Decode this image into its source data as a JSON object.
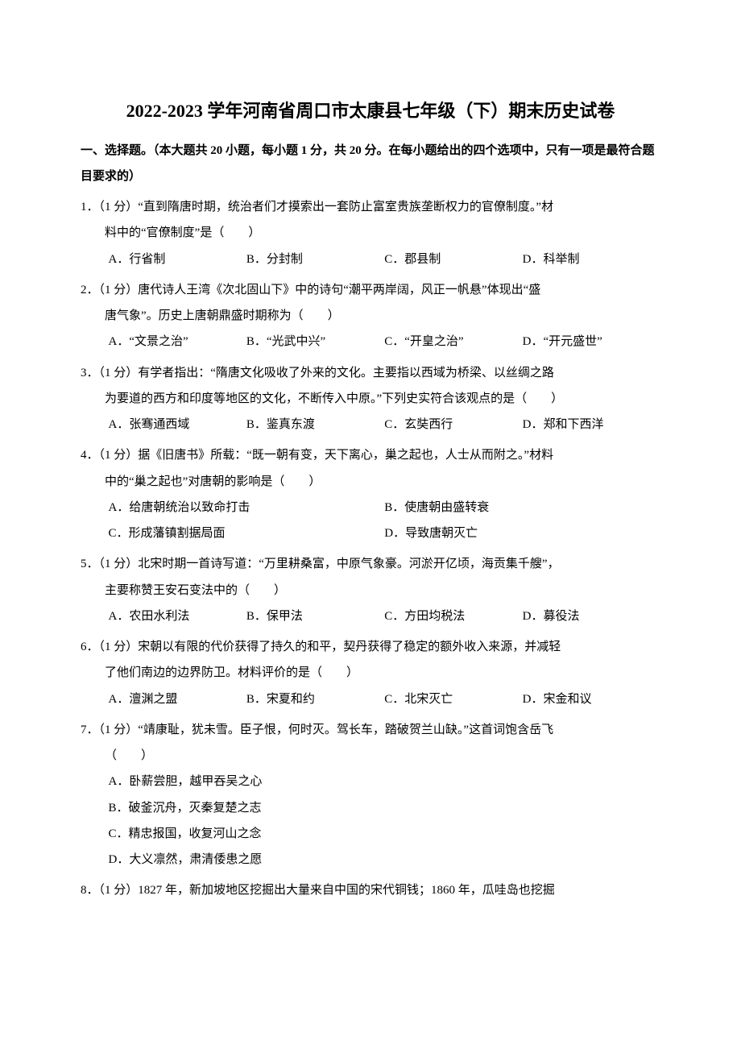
{
  "title": "2022-2023 学年河南省周口市太康县七年级（下）期末历史试卷",
  "section1": {
    "heading": "一、选择题。（本大题共 20 小题，每小题 1 分，共 20 分。在每小题给出的四个选项中，只有一项是最符合题目要求的）"
  },
  "q1": {
    "num": "1．（1 分）",
    "stem_a": "“直到隋唐时期，统治者们才摸索出一套防止富室贵族垄断权力的官僚制度。”材",
    "stem_b": "料中的“官僚制度”是（　　）",
    "A": "A．行省制",
    "B": "B．分封制",
    "C": "C．郡县制",
    "D": "D．科举制"
  },
  "q2": {
    "num": "2．（1 分）",
    "stem_a": "唐代诗人王湾《次北固山下》中的诗句“潮平两岸阔，风正一帆悬”体现出“盛",
    "stem_b": "唐气象”。历史上唐朝鼎盛时期称为（　　）",
    "A": "A．“文景之治”",
    "B": "B．“光武中兴”",
    "C": "C．“开皇之治”",
    "D": "D．“开元盛世”"
  },
  "q3": {
    "num": "3．（1 分）",
    "stem_a": "有学者指出：“隋唐文化吸收了外来的文化。主要指以西域为桥梁、以丝绸之路",
    "stem_b": "为要道的西方和印度等地区的文化，不断传入中原。”下列史实符合该观点的是（　　）",
    "A": "A．张骞通西域",
    "B": "B．鉴真东渡",
    "C": "C．玄奘西行",
    "D": "D．郑和下西洋"
  },
  "q4": {
    "num": "4．（1 分）",
    "stem_a": "据《旧唐书》所载：“既一朝有变，天下离心，巢之起也，人士从而附之。”材料",
    "stem_b": "中的“巢之起也”对唐朝的影响是（　　）",
    "A": "A．给唐朝统治以致命打击",
    "B": "B．使唐朝由盛转衰",
    "C": "C．形成藩镇割据局面",
    "D": "D．导致唐朝灭亡"
  },
  "q5": {
    "num": "5．（1 分）",
    "stem_a": "北宋时期一首诗写道：“万里耕桑富，中原气象豪。河淤开亿顷，海贡集千艘”，",
    "stem_b": "主要称赞王安石变法中的（　　）",
    "A": "A．农田水利法",
    "B": "B．保甲法",
    "C": "C．方田均税法",
    "D": "D．募役法"
  },
  "q6": {
    "num": "6．（1 分）",
    "stem_a": "宋朝以有限的代价获得了持久的和平，契丹获得了稳定的额外收入来源，并减轻",
    "stem_b": "了他们南边的边界防卫。材料评价的是（　　）",
    "A": "A．澶渊之盟",
    "B": "B．宋夏和约",
    "C": "C．北宋灭亡",
    "D": "D．宋金和议"
  },
  "q7": {
    "num": "7．（1 分）",
    "stem_a": "“靖康耻，犹未雪。臣子恨，何时灭。驾长车，踏破贺兰山缺。”这首词饱含岳飞",
    "stem_b": "（　　）",
    "A": "A．卧薪尝胆，越甲吞吴之心",
    "B": "B．破釜沉舟，灭秦复楚之志",
    "C": "C．精忠报国，收复河山之念",
    "D": "D．大义凛然，肃清倭患之愿"
  },
  "q8": {
    "num": "8．（1 分）",
    "stem_a": "1827 年，新加坡地区挖掘出大量来自中国的宋代铜钱；1860 年，瓜哇岛也挖掘"
  }
}
